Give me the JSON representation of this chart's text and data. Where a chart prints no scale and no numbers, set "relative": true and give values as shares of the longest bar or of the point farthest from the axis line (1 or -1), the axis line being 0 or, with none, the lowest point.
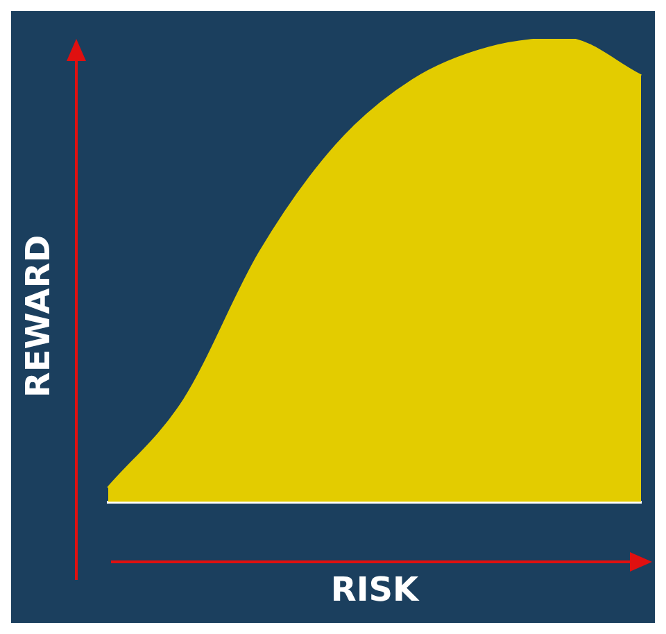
{
  "chart_data": {
    "type": "area",
    "relative": true,
    "xlabel": "RISK",
    "ylabel": "REWARD",
    "categories": [
      null,
      null,
      null,
      null,
      null,
      null,
      null,
      null
    ],
    "color": "#e3cc00",
    "values": [
      0.03,
      0.22,
      0.54,
      0.77,
      0.91,
      0.98,
      1,
      0.92
    ]
  }
}
